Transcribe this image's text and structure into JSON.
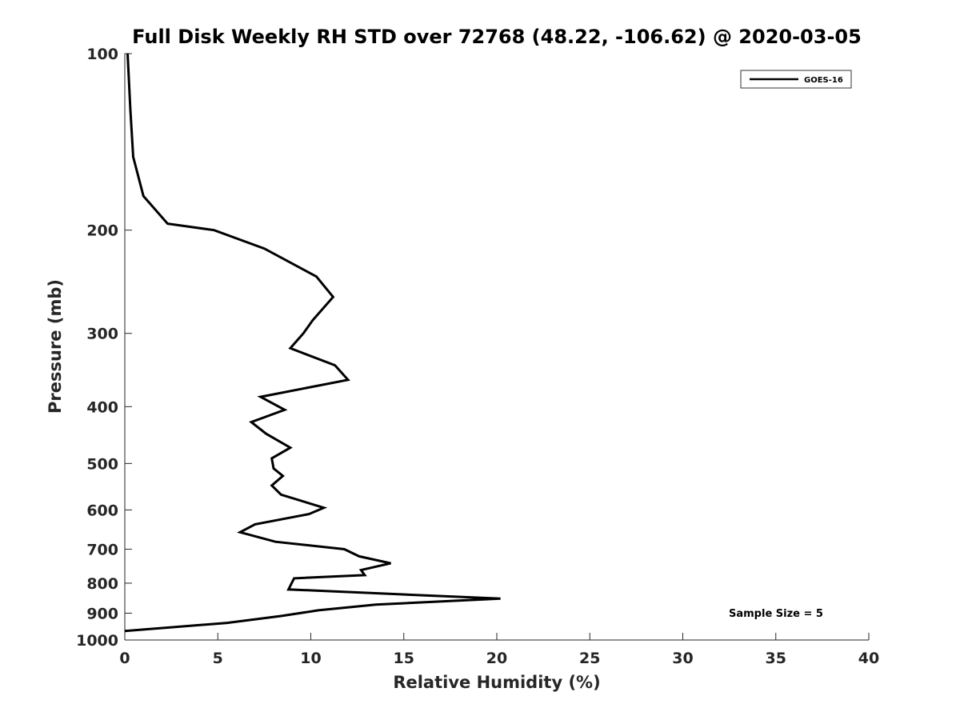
{
  "chart_data": {
    "type": "line",
    "title": "Full Disk Weekly RH STD over 72768 (48.22, -106.62) @ 2020-03-05",
    "xlabel": "Relative Humidity (%)",
    "ylabel": "Pressure (mb)",
    "xlim": [
      0,
      40
    ],
    "ylim": [
      100,
      1000
    ],
    "y_scale": "log",
    "y_reversed": true,
    "x_ticks": [
      0,
      5,
      10,
      15,
      20,
      25,
      30,
      35,
      40
    ],
    "y_ticks": [
      100,
      200,
      300,
      400,
      500,
      600,
      700,
      800,
      900,
      1000
    ],
    "grid": false,
    "legend_position": "top-right",
    "annotation": "Sample Size = 5",
    "series": [
      {
        "name": "GOES-16",
        "color": "#000000",
        "points": [
          [
            0.15,
            100
          ],
          [
            0.3,
            125
          ],
          [
            0.45,
            150
          ],
          [
            1.0,
            175
          ],
          [
            2.3,
            195
          ],
          [
            4.8,
            200
          ],
          [
            7.5,
            215
          ],
          [
            10.3,
            240
          ],
          [
            11.2,
            260
          ],
          [
            10.1,
            285
          ],
          [
            9.6,
            300
          ],
          [
            8.9,
            318
          ],
          [
            11.3,
            340
          ],
          [
            12.0,
            360
          ],
          [
            7.3,
            385
          ],
          [
            8.6,
            405
          ],
          [
            6.8,
            425
          ],
          [
            7.6,
            445
          ],
          [
            8.9,
            470
          ],
          [
            7.9,
            490
          ],
          [
            8.0,
            510
          ],
          [
            8.5,
            525
          ],
          [
            7.9,
            545
          ],
          [
            8.4,
            565
          ],
          [
            10.7,
            595
          ],
          [
            9.9,
            610
          ],
          [
            7.0,
            635
          ],
          [
            6.2,
            655
          ],
          [
            8.1,
            680
          ],
          [
            11.8,
            700
          ],
          [
            12.6,
            720
          ],
          [
            14.3,
            740
          ],
          [
            12.7,
            760
          ],
          [
            12.9,
            775
          ],
          [
            9.1,
            785
          ],
          [
            8.8,
            820
          ],
          [
            20.2,
            850
          ],
          [
            13.5,
            870
          ],
          [
            10.4,
            890
          ],
          [
            8.4,
            910
          ],
          [
            5.5,
            935
          ],
          [
            0.0,
            965
          ]
        ]
      }
    ]
  }
}
